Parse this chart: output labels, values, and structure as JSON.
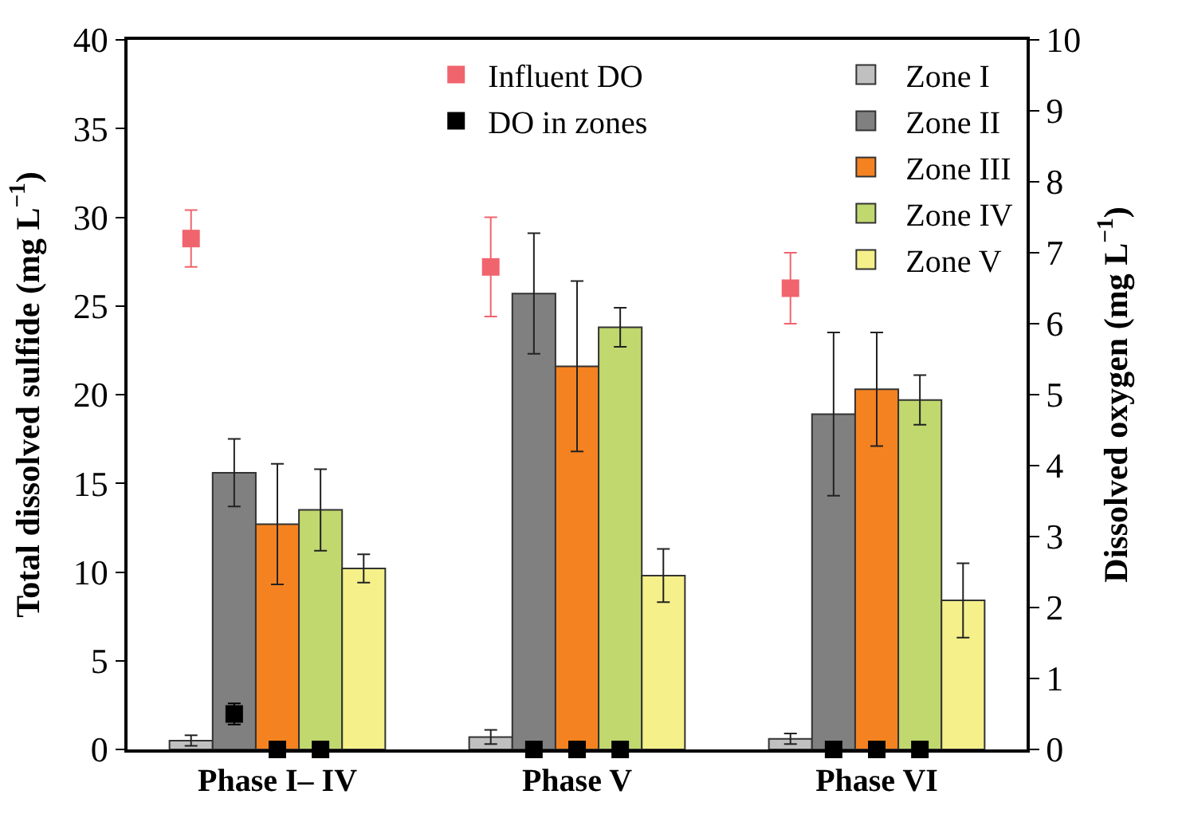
{
  "chart_data": {
    "type": "bar",
    "ylabel": "Total dissolved sulfide (mg L$^{−1}$)",
    "y2label": "Dissolved oxygen (mg L$^{−1}$)",
    "categories": [
      "Phase I– IV",
      "Phase V",
      "Phase VI"
    ],
    "ylim": [
      0,
      40
    ],
    "yticks": [
      0,
      5,
      10,
      15,
      20,
      25,
      30,
      35,
      40
    ],
    "y2lim": [
      0,
      10
    ],
    "y2ticks": [
      0,
      1,
      2,
      3,
      4,
      5,
      6,
      7,
      8,
      9,
      10
    ],
    "legend": "top right",
    "marker": "square",
    "series": [
      {
        "name": "Zone I",
        "color": "#c0c0c0",
        "values": [
          0.5,
          0.7,
          0.6
        ],
        "errors": [
          0.3,
          0.4,
          0.3
        ]
      },
      {
        "name": "Zone II",
        "color": "#808080",
        "values": [
          15.6,
          25.7,
          18.9
        ],
        "errors": [
          1.9,
          3.4,
          4.6
        ]
      },
      {
        "name": "Zone III",
        "color": "#f58220",
        "values": [
          12.7,
          21.6,
          20.3
        ],
        "errors": [
          3.4,
          4.8,
          3.2
        ]
      },
      {
        "name": "Zone IV",
        "color": "#c0d86e",
        "values": [
          13.5,
          23.8,
          19.7
        ],
        "errors": [
          2.3,
          1.1,
          1.4
        ]
      },
      {
        "name": "Zone V",
        "color": "#f5f08a",
        "values": [
          10.2,
          9.8,
          8.4
        ],
        "errors": [
          0.8,
          1.5,
          2.1
        ]
      },
      {
        "name": "Influent DO",
        "type": "scatter",
        "axis": "y2",
        "color": "#f0646e",
        "x": [
          "Phase I– IV",
          "Phase V",
          "Phase VI"
        ],
        "values": [
          7.2,
          6.8,
          6.5
        ],
        "errors": [
          0.4,
          0.7,
          0.5
        ]
      },
      {
        "name": "DO in zones",
        "type": "scatter",
        "axis": "y2",
        "color": "#000000",
        "x": [
          "Phase I– IV",
          "Phase I– IV",
          "Phase I– IV",
          "Phase I– IV",
          "Phase I– IV",
          "Phase V",
          "Phase V",
          "Phase V",
          "Phase V",
          "Phase V",
          "Phase VI",
          "Phase VI",
          "Phase VI",
          "Phase VI",
          "Phase VI"
        ],
        "values": [
          null,
          0.5,
          0,
          0,
          null,
          null,
          0,
          0,
          0,
          null,
          null,
          0,
          0,
          0,
          null
        ],
        "errors": [
          null,
          0.15,
          null,
          null,
          null,
          null,
          null,
          null,
          null,
          null,
          null,
          null,
          null,
          null,
          null
        ]
      }
    ]
  }
}
